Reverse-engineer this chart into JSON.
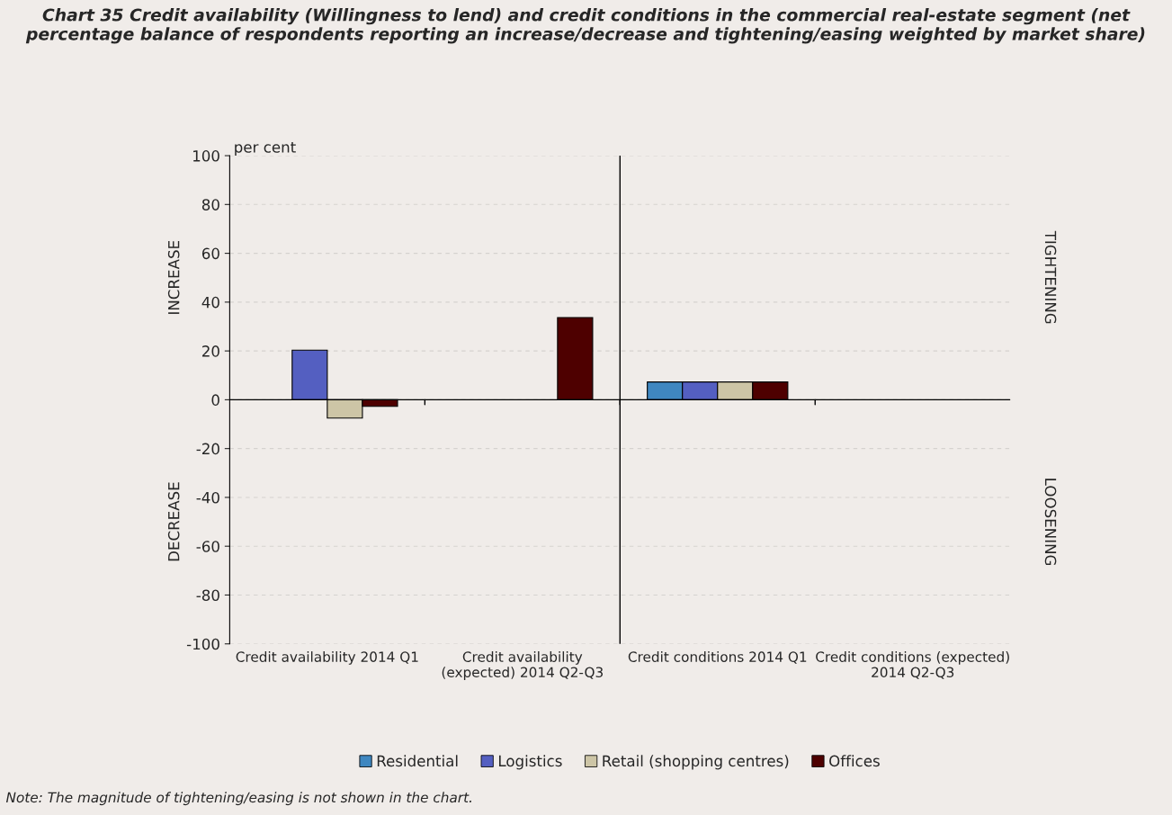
{
  "chart_data": {
    "type": "bar",
    "title": "Chart 35 Credit availability (Willingness to lend) and credit conditions in the commercial real-estate segment (net percentage balance of respondents reporting an increase/decrease and tightening/easing weighted by market share)",
    "ylabel": "per cent",
    "categories": [
      "Credit availability 2014 Q1",
      "Credit availability (expected) 2014 Q2-Q3",
      "Credit conditions 2014 Q1",
      "Credit conditions (expected) 2014 Q2-Q3"
    ],
    "series": [
      {
        "name": "Residential",
        "color": "#3f87c0",
        "values": [
          null,
          null,
          7.3,
          null
        ]
      },
      {
        "name": "Logistics",
        "color": "#545fc1",
        "values": [
          20.3,
          null,
          7.3,
          null
        ]
      },
      {
        "name": "Retail (shopping centres)",
        "color": "#cdc5a6",
        "values": [
          -7.5,
          null,
          7.3,
          null
        ]
      },
      {
        "name": "Offices",
        "color": "#4e0000",
        "values": [
          -2.7,
          33.7,
          7.3,
          null
        ]
      }
    ],
    "ylim": [
      -100,
      100
    ],
    "yticks": [
      -100,
      -80,
      -60,
      -40,
      -20,
      0,
      20,
      40,
      60,
      80,
      100
    ],
    "grid": "y",
    "legend": "bottom",
    "annotations": [
      "INCREASE",
      "DECREASE",
      "TIGHTENING",
      "LOOSENING",
      "Note: The magnitude of tightening/easing is not shown in the chart."
    ]
  }
}
